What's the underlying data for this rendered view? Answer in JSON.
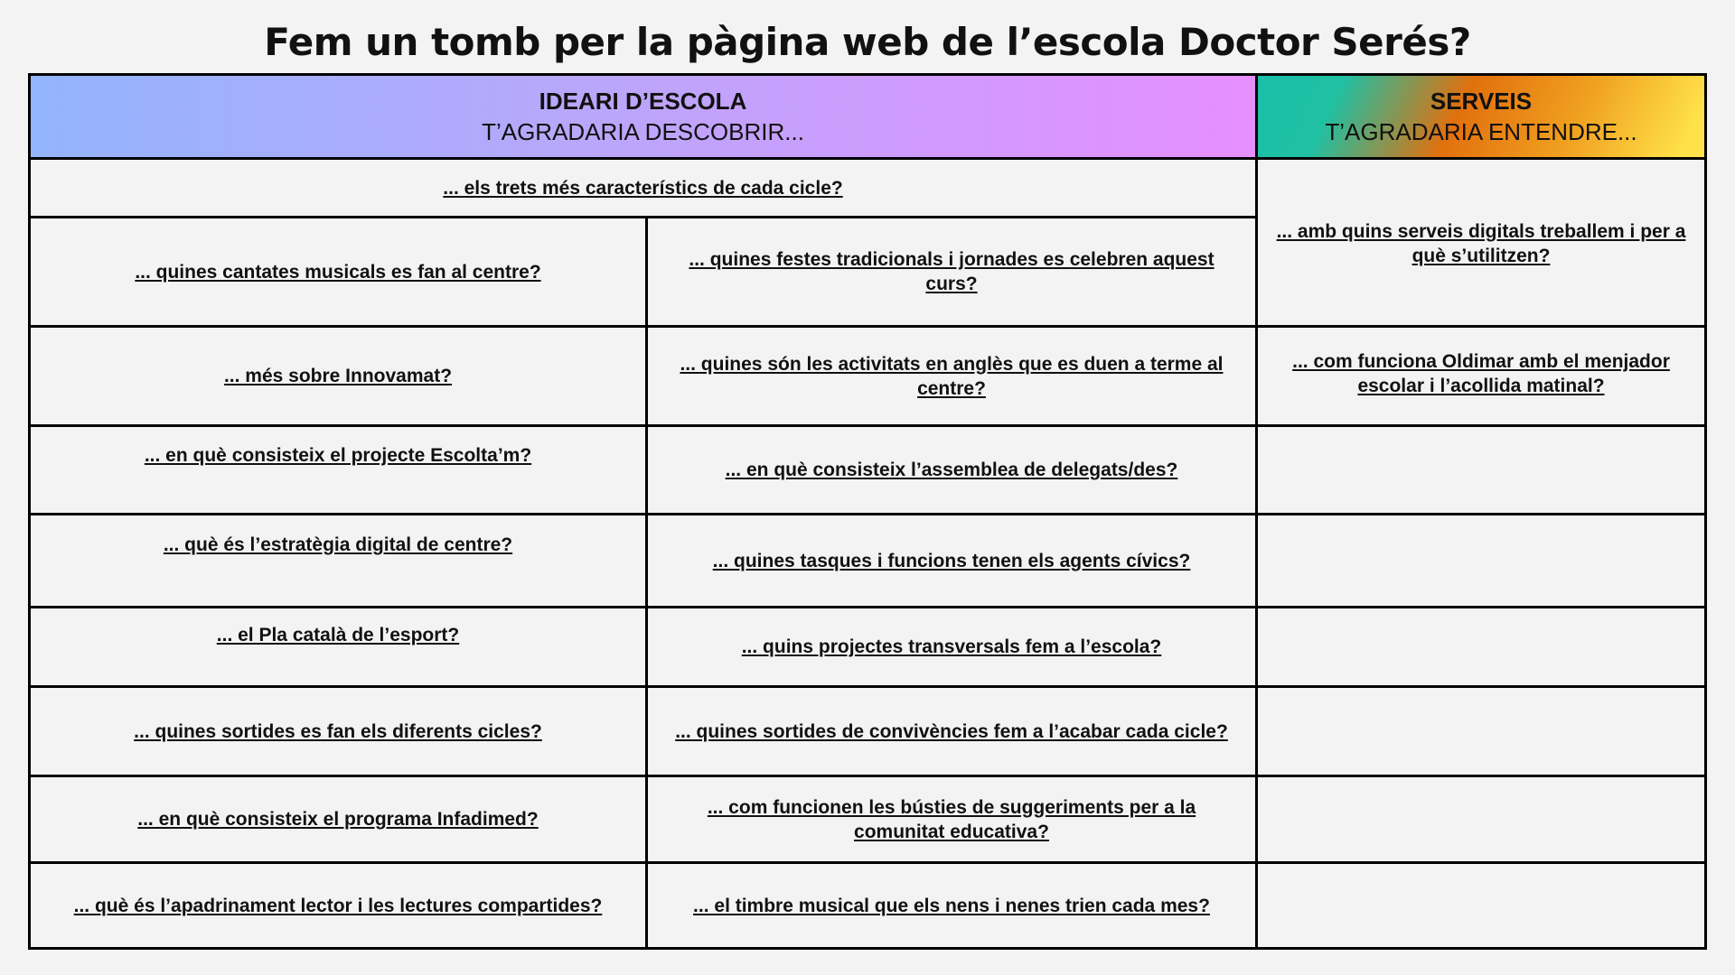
{
  "title": "Fem un tomb per la pàgina web de l’escola Doctor Serés?",
  "columns": {
    "ideari": {
      "heading": "IDEARI D’ESCOLA",
      "subheading": "T’AGRADARIA DESCOBRIR...",
      "gradient": [
        "#93b4fd",
        "#e68ffd"
      ]
    },
    "serveis": {
      "heading": "SERVEIS",
      "subheading": "T’AGRADARIA ENTENDRE...",
      "gradient": [
        "#1bbfa8",
        "#e2700d",
        "#ffe24a"
      ]
    }
  },
  "ideari_wide": "... els trets més característics de cada cicle?",
  "ideari_left": [
    "... quines cantates musicals es fan al centre?",
    "... més sobre Innovamat?",
    "... en què consisteix el projecte Escolta’m?",
    "... què és l’estratègia digital de centre?",
    "... el Pla català de l’esport?",
    "... quines sortides es fan els diferents cicles?",
    "... en què consisteix el programa Infadimed?",
    "... què és l’apadrinament lector i les lectures compartides?"
  ],
  "ideari_right": [
    "... quines festes tradicionals i jornades es celebren aquest curs?",
    "... quines són les activitats en anglès que es duen a terme al centre?",
    "... en què consisteix l’assemblea de delegats/des?",
    "... quines tasques i funcions tenen els agents cívics?",
    "... quins projectes transversals fem a l’escola?",
    "... quines sortides de convivències fem a l’acabar cada cicle?",
    "... com funcionen les bústies de suggeriments per a la comunitat educativa?",
    "... el timbre musical que els nens i nenes trien cada mes?"
  ],
  "serveis": [
    "... amb quins serveis digitals treballem i per a què s’utilitzen?",
    "... com funciona Oldimar amb el menjador escolar i l’acollida matinal?"
  ]
}
